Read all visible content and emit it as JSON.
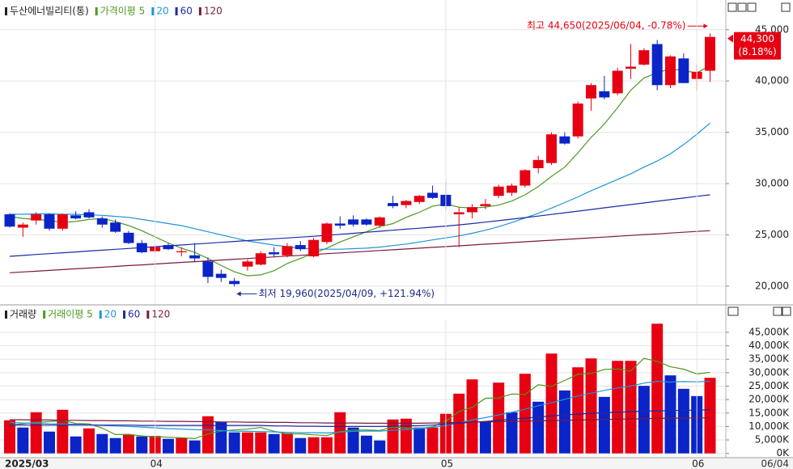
{
  "chart_data": [
    {
      "type": "candlestick",
      "title": "두산에너빌리티(통)",
      "open": [
        27000,
        25700,
        26400,
        27000,
        25600,
        26900,
        27200,
        26600,
        26200,
        25200,
        24200,
        23400,
        24000,
        23300,
        23000,
        22400,
        21200,
        20500,
        21900,
        22100,
        23300,
        23000,
        24000,
        22900,
        24300,
        26100,
        26500,
        26500,
        25900,
        28100,
        27900,
        28200,
        29100,
        28900,
        27000,
        27200,
        27800,
        28800,
        29100,
        29800,
        31500,
        32000,
        34600,
        34600,
        38300,
        39000,
        38800,
        41200,
        41600,
        43600,
        39600,
        42200,
        40200,
        41000
      ],
      "high": [
        27100,
        26200,
        27200,
        27100,
        27100,
        27300,
        27500,
        26800,
        26500,
        25400,
        24500,
        24000,
        24200,
        23800,
        24200,
        22800,
        21600,
        20800,
        22600,
        23400,
        23800,
        24200,
        24400,
        24700,
        26200,
        26800,
        26900,
        26600,
        26800,
        28800,
        28400,
        28900,
        29800,
        30200,
        27700,
        28000,
        28500,
        29900,
        30000,
        31400,
        32700,
        35000,
        35000,
        38000,
        39800,
        40500,
        41300,
        43600,
        43200,
        44000,
        42500,
        42700,
        41600,
        44650
      ],
      "low": [
        25700,
        24800,
        26000,
        25400,
        25400,
        26500,
        26600,
        25700,
        25200,
        24100,
        23200,
        23200,
        23500,
        22900,
        22400,
        20300,
        20400,
        19960,
        21500,
        22000,
        22900,
        22800,
        23400,
        22800,
        24100,
        25600,
        25800,
        25900,
        25700,
        27600,
        27600,
        28000,
        28500,
        27400,
        23800,
        26600,
        27500,
        28600,
        28800,
        29600,
        31000,
        31800,
        33800,
        34400,
        37100,
        38200,
        38600,
        40200,
        41500,
        39100,
        39300,
        39800,
        39100,
        39900
      ],
      "close": [
        25800,
        26000,
        27000,
        25600,
        27000,
        26600,
        26700,
        26000,
        25300,
        24200,
        23300,
        23800,
        23600,
        23400,
        22700,
        20900,
        20800,
        20200,
        22400,
        23200,
        23100,
        23900,
        23600,
        24500,
        26100,
        25900,
        26000,
        26000,
        26700,
        27800,
        28300,
        28800,
        28600,
        27800,
        27200,
        27700,
        28000,
        29700,
        29800,
        31300,
        32300,
        34800,
        33900,
        37800,
        39600,
        38400,
        41000,
        41400,
        43000,
        39600,
        42400,
        39800,
        40900,
        44300
      ],
      "up_color": "#e60012",
      "down_color": "#0a24c8",
      "series": [
        {
          "name": "가격이평 5",
          "color": "#4c9a1e",
          "values": [
            26800,
            26600,
            26500,
            26400,
            26200,
            26300,
            26500,
            26600,
            26300,
            25900,
            25400,
            24800,
            24200,
            23700,
            23300,
            22700,
            22000,
            21400,
            21000,
            21100,
            21500,
            22200,
            22700,
            23200,
            23700,
            24300,
            24800,
            25300,
            25800,
            26100,
            26700,
            27200,
            27800,
            28000,
            27700,
            27600,
            27700,
            27900,
            28300,
            28900,
            29700,
            30700,
            31600,
            33000,
            34500,
            35800,
            37400,
            39100,
            40300,
            40800,
            41200,
            41000,
            40800,
            41500
          ]
        },
        {
          "name": "20",
          "color": "#1e96d8",
          "values": [
            27000,
            27000,
            27050,
            27050,
            27000,
            27000,
            26950,
            26900,
            26800,
            26700,
            26500,
            26300,
            26100,
            25900,
            25600,
            25300,
            25000,
            24700,
            24400,
            24200,
            24000,
            23850,
            23700,
            23600,
            23600,
            23600,
            23650,
            23700,
            23800,
            23950,
            24100,
            24300,
            24500,
            24700,
            24900,
            25150,
            25450,
            25800,
            26200,
            26650,
            27100,
            27600,
            28150,
            28700,
            29300,
            29850,
            30400,
            30950,
            31600,
            32200,
            32900,
            33800,
            34800,
            35900
          ]
        },
        {
          "name": "60",
          "color": "#1b2aa6",
          "values": [
            22900,
            22990,
            23080,
            23160,
            23250,
            23330,
            23420,
            23500,
            23590,
            23670,
            23760,
            23840,
            23930,
            24010,
            24100,
            24180,
            24270,
            24350,
            24440,
            24520,
            24610,
            24690,
            24780,
            24860,
            24950,
            25050,
            25150,
            25250,
            25350,
            25450,
            25550,
            25650,
            25750,
            25850,
            25970,
            26100,
            26240,
            26380,
            26530,
            26680,
            26830,
            26990,
            27150,
            27310,
            27470,
            27630,
            27790,
            27950,
            28110,
            28270,
            28430,
            28590,
            28750,
            28900
          ]
        },
        {
          "name": "120",
          "color": "#7a1a3c",
          "values": [
            21300,
            21380,
            21450,
            21530,
            21610,
            21690,
            21760,
            21840,
            21920,
            22000,
            22070,
            22150,
            22230,
            22310,
            22380,
            22460,
            22540,
            22620,
            22690,
            22770,
            22850,
            22930,
            23000,
            23080,
            23160,
            23230,
            23310,
            23390,
            23470,
            23540,
            23620,
            23700,
            23780,
            23850,
            23930,
            24010,
            24090,
            24160,
            24240,
            24320,
            24400,
            24470,
            24550,
            24630,
            24710,
            24780,
            24860,
            24940,
            25020,
            25090,
            25170,
            25250,
            25330,
            25400
          ]
        }
      ],
      "ylim": [
        18250,
        47900
      ],
      "yticks": [
        {
          "value": 20000,
          "label": "20,000"
        },
        {
          "value": 25000,
          "label": "25,000"
        },
        {
          "value": 30000,
          "label": "30,000"
        },
        {
          "value": 35000,
          "label": "35,000"
        },
        {
          "value": 40000,
          "label": "40,000"
        },
        {
          "value": 45000,
          "label": "45,000"
        }
      ],
      "grid": true,
      "high_annotation": "최고 44,650(2025/06/04, -0.78%)",
      "low_annotation": "최저 19,960(2025/04/09, +121.94%)",
      "last_price_label": "44,300",
      "last_change_label": "(8.18%)"
    },
    {
      "type": "bar",
      "title": "거래량",
      "categories": [
        "2025/03",
        null,
        null,
        null,
        null,
        null,
        null,
        null,
        null,
        null,
        null,
        "04",
        null,
        null,
        null,
        null,
        null,
        null,
        null,
        null,
        null,
        null,
        null,
        null,
        null,
        null,
        null,
        null,
        null,
        null,
        null,
        null,
        null,
        "05",
        null,
        null,
        null,
        null,
        null,
        null,
        null,
        null,
        null,
        null,
        null,
        null,
        null,
        null,
        null,
        null,
        null,
        null,
        "06",
        null
      ],
      "values": [
        12300,
        9600,
        15300,
        8100,
        16200,
        6300,
        9300,
        7200,
        5700,
        6900,
        6300,
        6500,
        5400,
        5700,
        4800,
        13800,
        11700,
        7800,
        7800,
        7800,
        7200,
        7500,
        5700,
        6000,
        6000,
        15300,
        9600,
        6600,
        4800,
        12600,
        12900,
        9600,
        9600,
        14700,
        22200,
        27500,
        11700,
        26300,
        15300,
        29600,
        19200,
        37100,
        23400,
        32000,
        35300,
        21000,
        34400,
        34400,
        25100,
        48200,
        29000,
        24000,
        21300,
        28100
      ],
      "up_color": "#e60012",
      "down_color": "#0a24c8",
      "series": [
        {
          "name": "거래이평 5",
          "color": "#4c9a1e",
          "values": [
            10500,
            11000,
            11500,
            11800,
            12300,
            11100,
            11000,
            9400,
            7000,
            7100,
            6500,
            6200,
            6000,
            5800,
            5500,
            7200,
            8300,
            8700,
            9000,
            9600,
            8200,
            7200,
            7200,
            6900,
            6600,
            8100,
            8700,
            8700,
            8500,
            9800,
            9400,
            9200,
            9900,
            11900,
            15600,
            17100,
            20500,
            20600,
            22100,
            21900,
            25500,
            24900,
            27100,
            29400,
            29700,
            31200,
            31400,
            30600,
            35300,
            34200,
            32200,
            31300,
            29500,
            30100
          ]
        },
        {
          "name": "20",
          "color": "#1e96d8",
          "values": [
            11500,
            11300,
            11200,
            11000,
            10900,
            10800,
            10600,
            10400,
            10200,
            10000,
            9800,
            9500,
            9200,
            9000,
            8800,
            8700,
            8500,
            8300,
            8200,
            8100,
            8000,
            7800,
            7700,
            7700,
            7600,
            7900,
            8200,
            8300,
            8300,
            8600,
            8900,
            9200,
            9700,
            10400,
            11400,
            12400,
            13300,
            14300,
            15300,
            16400,
            17700,
            18800,
            20100,
            21300,
            22400,
            23400,
            24300,
            25000,
            26100,
            26800,
            26500,
            26700,
            26600,
            26800
          ]
        },
        {
          "name": "60",
          "color": "#1b2aa6",
          "values": [
            10500,
            10500,
            10500,
            10500,
            10500,
            10500,
            10500,
            10500,
            10500,
            10500,
            10400,
            10400,
            10400,
            10400,
            10400,
            10400,
            10400,
            10400,
            10400,
            10400,
            10200,
            10200,
            10100,
            10100,
            10000,
            10000,
            10000,
            10000,
            10000,
            10100,
            10200,
            10300,
            10500,
            10800,
            11200,
            11500,
            11900,
            12300,
            12700,
            13100,
            13500,
            13900,
            14300,
            14600,
            14900,
            15100,
            15300,
            15500,
            15700,
            15800,
            15900,
            16000,
            16100,
            16200
          ]
        },
        {
          "name": "120",
          "color": "#7a1a3c",
          "values": [
            12500,
            12500,
            12400,
            12400,
            12300,
            12300,
            12200,
            12200,
            12100,
            12100,
            12000,
            12000,
            11900,
            11900,
            11800,
            11800,
            11700,
            11700,
            11600,
            11600,
            11500,
            11500,
            11400,
            11400,
            11300,
            11300,
            11300,
            11200,
            11200,
            11200,
            11200,
            11200,
            11300,
            11400,
            11500,
            11600,
            11700,
            11800,
            11900,
            12000,
            12100,
            12200,
            12300,
            12400,
            12500,
            12600,
            12700,
            12800,
            12900,
            13000,
            13100,
            13100,
            13200,
            13200
          ]
        }
      ],
      "ylim": [
        -1600,
        49500
      ],
      "yticks": [
        {
          "value": 0,
          "label": "0K"
        },
        {
          "value": 5000,
          "label": "5,000K"
        },
        {
          "value": 10000,
          "label": "10,000K"
        },
        {
          "value": 15000,
          "label": "15,000K"
        },
        {
          "value": 20000,
          "label": "20,000K"
        },
        {
          "value": 25000,
          "label": "25,000K"
        },
        {
          "value": 30000,
          "label": "30,000K"
        },
        {
          "value": 35000,
          "label": "35,000K"
        },
        {
          "value": 40000,
          "label": "40,000K"
        },
        {
          "value": 45000,
          "label": "45,000K"
        }
      ],
      "grid": true,
      "cursor_date": "06/04"
    }
  ]
}
